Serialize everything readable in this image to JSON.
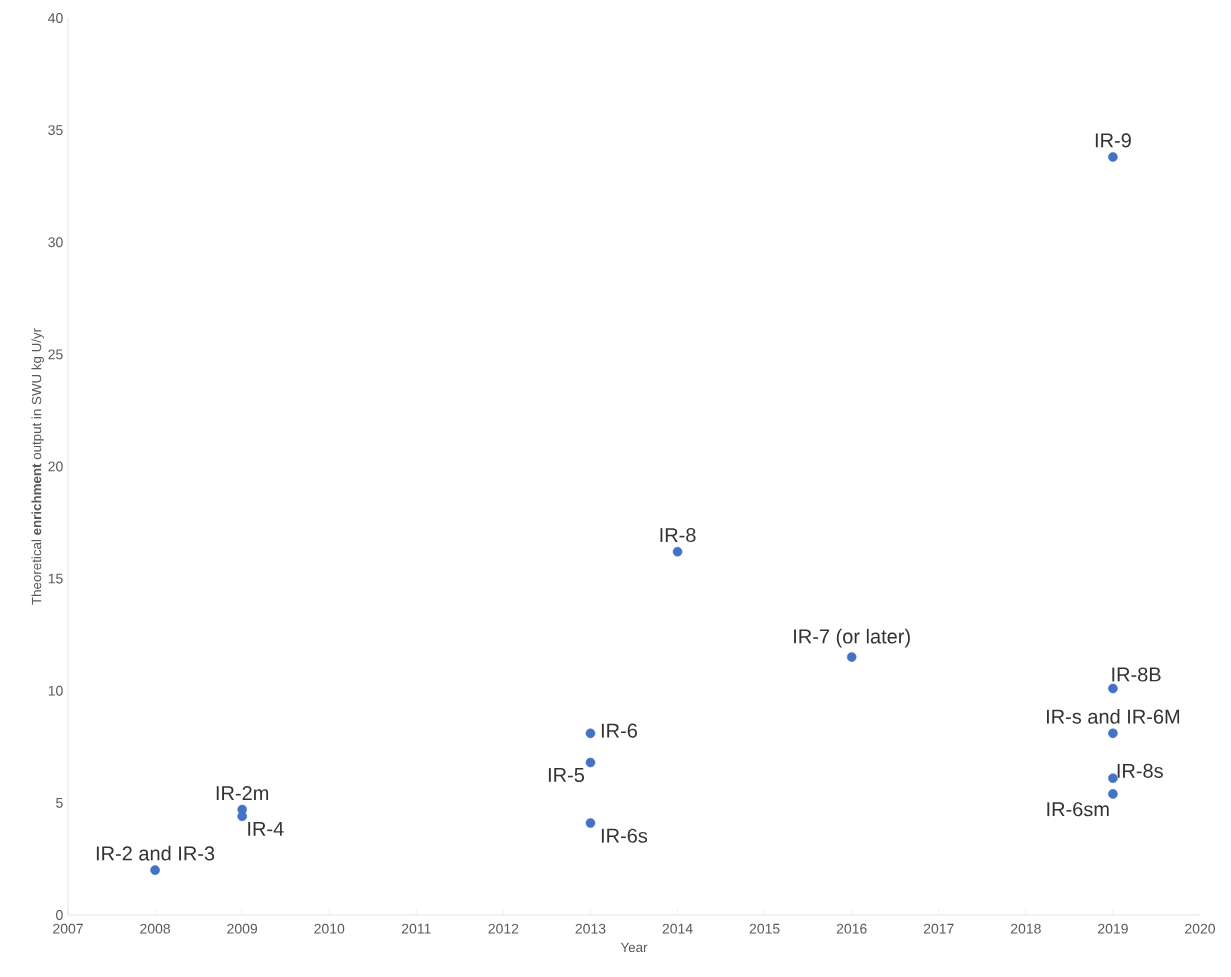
{
  "chart_data": {
    "type": "scatter",
    "xlabel": "Year",
    "ylabel": "Theoretical **enrichment** output in SWU kg U/yr",
    "x": [
      2008,
      2009,
      2009,
      2013,
      2013,
      2013,
      2014,
      2016,
      2019,
      2019,
      2019,
      2019,
      2019
    ],
    "values": [
      2.0,
      4.7,
      4.4,
      8.1,
      6.8,
      4.1,
      16.2,
      11.5,
      33.8,
      10.1,
      8.1,
      6.1,
      5.4
    ],
    "color": "#4472c4",
    "marker": "circle",
    "xlim": [
      2007,
      2020
    ],
    "xticks": [
      2007,
      2008,
      2009,
      2010,
      2011,
      2012,
      2013,
      2014,
      2015,
      2016,
      2017,
      2018,
      2019,
      2020
    ],
    "ylim": [
      0,
      40
    ],
    "yticks": [
      0,
      5,
      10,
      15,
      20,
      25,
      30,
      35,
      40
    ],
    "annotations": [
      {
        "text": "IR-2 and IR-3",
        "x": 2008,
        "y": 2.0
      },
      {
        "text": "IR-2m",
        "x": 2009,
        "y": 4.7
      },
      {
        "text": "IR-4",
        "x": 2009,
        "y": 4.4
      },
      {
        "text": "IR-6",
        "x": 2013,
        "y": 8.1
      },
      {
        "text": "IR-5",
        "x": 2013,
        "y": 6.8
      },
      {
        "text": "IR-6s",
        "x": 2013,
        "y": 4.1
      },
      {
        "text": "IR-8",
        "x": 2014,
        "y": 16.2
      },
      {
        "text": "IR-7 (or later)",
        "x": 2016,
        "y": 11.5
      },
      {
        "text": "IR-9",
        "x": 2019,
        "y": 33.8
      },
      {
        "text": "IR-8B",
        "x": 2019,
        "y": 10.1
      },
      {
        "text": "IR-s and IR-6M",
        "x": 2019,
        "y": 8.1
      },
      {
        "text": "IR-8s",
        "x": 2019,
        "y": 6.1
      },
      {
        "text": "IR-6sm",
        "x": 2019,
        "y": 5.4
      }
    ]
  }
}
